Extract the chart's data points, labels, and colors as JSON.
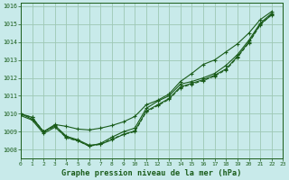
{
  "title": "Graphe pression niveau de la mer (hPa)",
  "background_color": "#c8eaea",
  "grid_color": "#9dc8b4",
  "line_color": "#1a5c1a",
  "xlim": [
    0,
    23
  ],
  "ylim": [
    1007.5,
    1016.2
  ],
  "yticks": [
    1008,
    1009,
    1010,
    1011,
    1012,
    1013,
    1014,
    1015,
    1016
  ],
  "xticks": [
    0,
    1,
    2,
    3,
    4,
    5,
    6,
    7,
    8,
    9,
    10,
    11,
    12,
    13,
    14,
    15,
    16,
    17,
    18,
    19,
    20,
    21,
    22,
    23
  ],
  "series": [
    {
      "x": [
        0,
        1,
        2,
        3,
        4,
        5,
        6,
        7,
        8,
        9,
        10,
        11,
        12,
        13,
        14,
        15,
        16,
        17,
        18,
        19,
        20,
        21,
        22
      ],
      "y": [
        1010.0,
        1009.7,
        1009.0,
        1009.4,
        1009.3,
        1009.15,
        1009.1,
        1009.2,
        1009.35,
        1009.55,
        1009.85,
        1010.5,
        1010.75,
        1011.1,
        1011.8,
        1012.25,
        1012.75,
        1013.0,
        1013.45,
        1013.9,
        1014.5,
        1015.25,
        1015.7
      ],
      "linestyle": "-"
    },
    {
      "x": [
        0,
        1,
        2,
        3,
        4,
        5,
        6,
        7,
        8,
        9,
        10,
        11,
        12,
        13,
        14,
        15,
        16,
        17,
        18,
        19,
        20,
        21,
        22
      ],
      "y": [
        1010.0,
        1009.8,
        1009.0,
        1009.35,
        1008.75,
        1008.55,
        1008.25,
        1008.3,
        1008.55,
        1008.85,
        1009.05,
        1010.15,
        1010.5,
        1010.85,
        1011.5,
        1011.7,
        1011.9,
        1012.15,
        1012.5,
        1013.2,
        1014.0,
        1015.0,
        1015.5
      ],
      "linestyle": "-"
    },
    {
      "x": [
        0,
        1,
        2,
        3,
        4,
        5,
        6,
        7,
        8,
        9,
        10,
        11,
        12,
        13,
        14,
        15,
        16,
        17,
        18,
        19,
        20,
        21,
        22
      ],
      "y": [
        1010.0,
        1009.8,
        1009.0,
        1009.3,
        1008.65,
        1008.5,
        1008.2,
        1008.3,
        1008.6,
        1008.85,
        1009.0,
        1010.1,
        1010.45,
        1010.8,
        1011.45,
        1011.65,
        1011.85,
        1012.1,
        1012.45,
        1013.15,
        1013.95,
        1014.95,
        1015.55
      ],
      "linestyle": "--"
    },
    {
      "x": [
        0,
        1,
        2,
        3,
        4,
        5,
        6,
        7,
        8,
        9,
        10,
        11,
        12,
        13,
        14,
        15,
        16,
        17,
        18,
        19,
        20,
        21,
        22
      ],
      "y": [
        1009.9,
        1009.65,
        1008.9,
        1009.25,
        1008.7,
        1008.5,
        1008.2,
        1008.35,
        1008.7,
        1009.0,
        1009.2,
        1010.3,
        1010.7,
        1011.0,
        1011.65,
        1011.8,
        1012.0,
        1012.25,
        1012.7,
        1013.3,
        1014.1,
        1015.05,
        1015.6
      ],
      "linestyle": "-"
    }
  ]
}
